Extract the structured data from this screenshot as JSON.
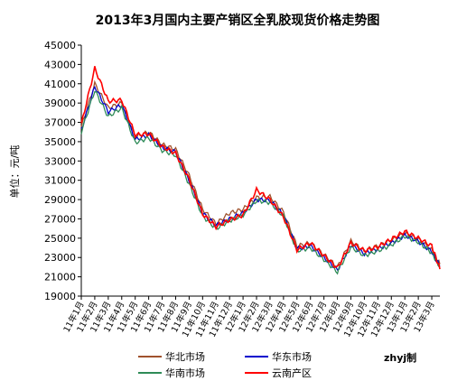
{
  "chart_data": {
    "type": "line",
    "title": "2013年3月国内主要产销区全乳胶现货价格走势图",
    "ylabel": "单位：元/吨",
    "xlabel": "",
    "ylim": [
      19000,
      45000
    ],
    "y_ticks": [
      "45000",
      "43000",
      "41000",
      "39000",
      "37000",
      "35000",
      "33000",
      "31000",
      "29000",
      "27000",
      "25000",
      "23000",
      "21000",
      "19000"
    ],
    "x_ticks": [
      "11年1月",
      "11年2月",
      "11年3月",
      "11年4月",
      "11年5月",
      "11年6月",
      "11年7月",
      "11年8月",
      "11年9月",
      "11年10月",
      "11年11月",
      "11年12月",
      "12年1月",
      "12年2月",
      "12年3月",
      "12年4月",
      "12年5月",
      "12年6月",
      "12年7月",
      "12年8月",
      "12年9月",
      "12年10月",
      "12年11月",
      "12年12月",
      "13年1月",
      "13年2月",
      "13年3月"
    ],
    "grid": false,
    "legend_position": "bottom",
    "credit": "zhyj制",
    "x": [
      0,
      1,
      2,
      3,
      4,
      5,
      6,
      7,
      8,
      9,
      10,
      11,
      12,
      13,
      14,
      15,
      16,
      17,
      18,
      19,
      20,
      21,
      22,
      23,
      24,
      25,
      26,
      26.6
    ],
    "series": [
      {
        "name": "华北市场",
        "color": "#a0522d",
        "values": [
          36500,
          41000,
          38500,
          39000,
          35500,
          36000,
          34700,
          34200,
          31500,
          28000,
          26500,
          27600,
          28000,
          29200,
          29300,
          27700,
          24200,
          24500,
          23300,
          22000,
          24700,
          23700,
          24200,
          24800,
          25500,
          24900,
          23800,
          22300
        ]
      },
      {
        "name": "华东市场",
        "color": "#0000cd",
        "values": [
          36200,
          40700,
          38100,
          38800,
          35200,
          35700,
          34400,
          33900,
          31000,
          27600,
          26300,
          27000,
          27600,
          29000,
          28900,
          27400,
          23900,
          24200,
          23000,
          21700,
          24300,
          23400,
          23900,
          24500,
          25300,
          24700,
          23600,
          22100
        ]
      },
      {
        "name": "华南市场",
        "color": "#2e8b57",
        "values": [
          36000,
          40300,
          37600,
          38500,
          34900,
          35400,
          34100,
          33600,
          30600,
          27300,
          26000,
          26800,
          27400,
          28900,
          28700,
          27300,
          23700,
          24000,
          22800,
          21500,
          24100,
          23200,
          23700,
          24300,
          25200,
          24600,
          23500,
          22000
        ]
      },
      {
        "name": "云南产区",
        "color": "#ff0000",
        "values": [
          36800,
          42600,
          39200,
          39300,
          35700,
          35800,
          34500,
          33800,
          31100,
          27500,
          26200,
          26900,
          27400,
          30000,
          29000,
          27200,
          23800,
          24500,
          23200,
          21900,
          24500,
          23700,
          24100,
          24900,
          25700,
          25000,
          24200,
          21800
        ]
      }
    ]
  }
}
